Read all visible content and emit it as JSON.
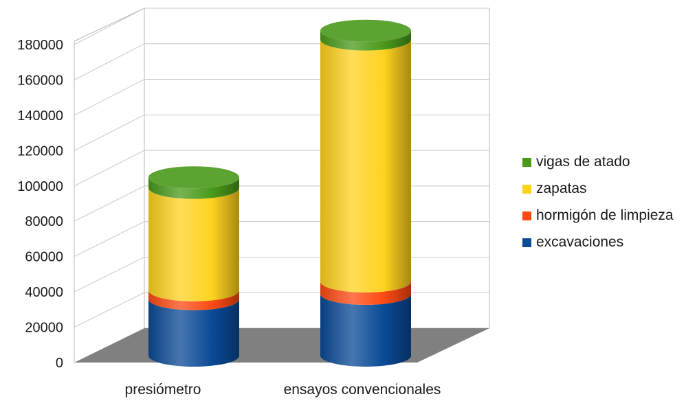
{
  "chart_data": {
    "type": "bar",
    "stacked": true,
    "style": "3d-cylinder",
    "categories": [
      "presiómetro",
      "ensayos convencionales"
    ],
    "series": [
      {
        "name": "excavaciones",
        "color": "#0a4a96",
        "values": [
          32000,
          35000
        ]
      },
      {
        "name": "hormigón de limpieza",
        "color": "#ff4a12",
        "values": [
          5000,
          7000
        ]
      },
      {
        "name": "zapatas",
        "color": "#ffd21f",
        "values": [
          58000,
          137000
        ]
      },
      {
        "name": "vigas de atado",
        "color": "#4a9a1a",
        "values": [
          6000,
          5000
        ]
      }
    ],
    "title": "",
    "xlabel": "",
    "ylabel": "",
    "ylim": [
      0,
      180000
    ],
    "yticks": [
      "0",
      "20000",
      "40000",
      "60000",
      "80000",
      "100000",
      "120000",
      "140000",
      "160000",
      "180000"
    ],
    "grid": true,
    "legend_position": "right",
    "floor_color": "#808080"
  }
}
